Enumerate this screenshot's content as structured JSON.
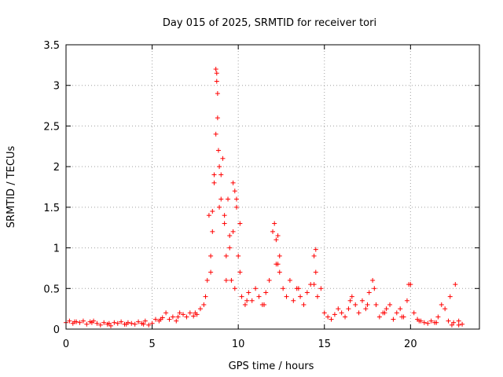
{
  "chart_data": {
    "type": "scatter",
    "title": "Day 015 of 2025, SRMTID for receiver tori",
    "xlabel": "GPS time / hours",
    "ylabel": "SRMTID / TECUs",
    "xlim": [
      0,
      24
    ],
    "ylim": [
      0,
      3.5
    ],
    "xticks": [
      0,
      5,
      10,
      15,
      20
    ],
    "xtick_labels": [
      "0",
      "5",
      "10",
      "15",
      "20"
    ],
    "yticks": [
      0,
      0.5,
      1,
      1.5,
      2,
      2.5,
      3,
      3.5
    ],
    "ytick_labels": [
      "0",
      "0.5",
      "1",
      "1.5",
      "2",
      "2.5",
      "3",
      "3.5"
    ],
    "grid": true,
    "marker": "+",
    "color": "#ff0000",
    "series": [
      {
        "name": "SRMTID",
        "x": [
          0.0,
          0.2,
          0.4,
          0.6,
          0.8,
          1.0,
          1.2,
          1.4,
          1.6,
          1.8,
          2.0,
          2.2,
          2.4,
          2.6,
          2.8,
          3.0,
          3.2,
          3.4,
          3.6,
          3.8,
          4.0,
          4.2,
          4.4,
          4.6,
          4.8,
          5.0,
          5.2,
          5.4,
          5.6,
          5.8,
          6.0,
          6.2,
          6.4,
          6.6,
          6.8,
          7.0,
          7.2,
          7.4,
          7.6,
          7.8,
          8.0,
          8.1,
          8.2,
          8.3,
          8.4,
          8.5,
          8.6,
          8.7,
          8.75,
          8.8,
          8.85,
          8.9,
          9.0,
          9.1,
          9.2,
          9.3,
          9.4,
          9.5,
          9.6,
          9.7,
          9.8,
          9.9,
          10.0,
          10.1,
          10.2,
          10.4,
          10.6,
          10.8,
          11.0,
          11.2,
          11.4,
          11.6,
          11.8,
          12.0,
          12.1,
          12.2,
          12.3,
          12.4,
          12.6,
          12.8,
          13.0,
          13.2,
          13.4,
          13.6,
          13.8,
          14.0,
          14.2,
          14.4,
          14.5,
          14.6,
          14.8,
          15.0,
          15.2,
          15.4,
          15.6,
          15.8,
          16.0,
          16.2,
          16.4,
          16.6,
          16.8,
          17.0,
          17.2,
          17.4,
          17.6,
          17.8,
          18.0,
          18.2,
          18.4,
          18.6,
          18.8,
          19.0,
          19.2,
          19.4,
          19.6,
          19.8,
          20.0,
          20.2,
          20.4,
          20.6,
          20.8,
          21.0,
          21.2,
          21.4,
          21.6,
          21.8,
          22.0,
          22.2,
          22.4,
          22.6,
          22.8,
          23.0,
          8.7,
          8.75,
          8.8,
          8.6,
          8.9,
          9.0,
          9.2,
          9.5,
          9.7,
          9.9,
          10.1,
          8.5,
          8.4,
          9.3,
          9.8,
          12.2,
          12.4,
          12.3,
          14.5,
          14.4,
          17.9,
          19.9,
          22.3,
          22.5,
          0.5,
          1.5,
          2.5,
          3.5,
          4.5,
          5.5,
          6.5,
          7.5,
          10.5,
          11.5,
          13.5,
          16.5,
          17.5,
          18.5,
          19.5,
          20.5,
          21.5,
          22.8
        ],
        "y": [
          0.08,
          0.1,
          0.07,
          0.09,
          0.08,
          0.1,
          0.06,
          0.09,
          0.1,
          0.07,
          0.05,
          0.08,
          0.06,
          0.04,
          0.08,
          0.07,
          0.09,
          0.06,
          0.08,
          0.07,
          0.06,
          0.09,
          0.07,
          0.1,
          0.05,
          0.07,
          0.12,
          0.1,
          0.14,
          0.2,
          0.12,
          0.15,
          0.1,
          0.2,
          0.18,
          0.15,
          0.2,
          0.16,
          0.18,
          0.25,
          0.3,
          0.4,
          0.6,
          1.4,
          0.9,
          1.2,
          1.8,
          2.4,
          3.15,
          2.9,
          2.2,
          1.5,
          1.9,
          2.1,
          1.3,
          0.9,
          1.6,
          1.0,
          0.6,
          1.2,
          1.7,
          1.5,
          0.9,
          0.7,
          0.4,
          0.3,
          0.45,
          0.35,
          0.5,
          0.4,
          0.3,
          0.45,
          0.6,
          1.2,
          1.3,
          1.1,
          0.8,
          0.7,
          0.5,
          0.4,
          0.6,
          0.35,
          0.5,
          0.4,
          0.3,
          0.45,
          0.55,
          0.9,
          0.7,
          0.4,
          0.5,
          0.2,
          0.15,
          0.12,
          0.18,
          0.25,
          0.2,
          0.15,
          0.25,
          0.4,
          0.3,
          0.2,
          0.35,
          0.25,
          0.45,
          0.6,
          0.3,
          0.15,
          0.2,
          0.25,
          0.3,
          0.12,
          0.2,
          0.25,
          0.15,
          0.35,
          0.55,
          0.2,
          0.12,
          0.1,
          0.08,
          0.07,
          0.1,
          0.08,
          0.15,
          0.3,
          0.25,
          0.1,
          0.05,
          0.55,
          0.1,
          0.06,
          3.2,
          3.05,
          2.6,
          1.9,
          2.0,
          1.6,
          1.4,
          1.15,
          1.8,
          1.6,
          1.3,
          1.45,
          0.7,
          0.6,
          0.5,
          0.8,
          0.9,
          1.15,
          0.98,
          0.55,
          0.5,
          0.55,
          0.4,
          0.08,
          0.09,
          0.08,
          0.07,
          0.06,
          0.06,
          0.12,
          0.15,
          0.2,
          0.35,
          0.3,
          0.5,
          0.35,
          0.3,
          0.2,
          0.15,
          0.1,
          0.08,
          0.05
        ]
      }
    ]
  }
}
